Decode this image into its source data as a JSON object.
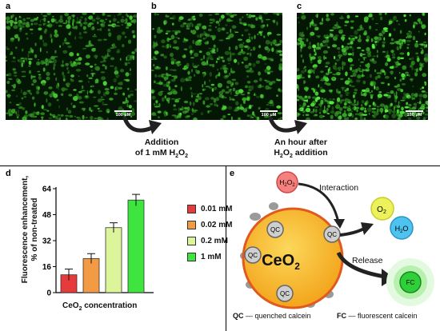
{
  "panels": {
    "a": "a",
    "b": "b",
    "c": "c",
    "d": "d",
    "e": "e"
  },
  "scale_bar": "100 μM",
  "captions": {
    "addition_line1": "Addition",
    "addition_line2": "of 1 mM H",
    "addition_sub": "2",
    "addition_tail": "O",
    "addition_sub2": "2",
    "hour_line1": "An hour after",
    "hour_h": "H",
    "hour_sub1": "2",
    "hour_o": "O",
    "hour_sub2": "2",
    "hour_tail": " addition"
  },
  "colors": {
    "bar_red": "#e63b3b",
    "bar_orange": "#f39a45",
    "bar_lightgreen": "#ddf59a",
    "bar_green": "#3ee53e",
    "ceo2": "#f7b52a",
    "ceo2_border": "#e05a20",
    "h2o2": "#f07070",
    "o2": "#eef25a",
    "h2o": "#4fc3f0",
    "fc": "#2fcf3a"
  },
  "chart_data": {
    "type": "bar",
    "xlabel_main": "CeO",
    "xlabel_sub": "2",
    "xlabel_tail": " concentration",
    "ylabel_line1": "Fluorescence enhancement,",
    "ylabel_line2": "% of non-treated",
    "ylim": [
      0,
      64
    ],
    "yticks": [
      "0",
      "16",
      "32",
      "48",
      "64"
    ],
    "categories": [
      "0.01 mM",
      "0.02 mM",
      "0.2 mM",
      "1 mM"
    ],
    "values": [
      11,
      21,
      40,
      57
    ],
    "errors": [
      3.5,
      3,
      3,
      3.5
    ],
    "legend": [
      "0.01 mM",
      "0.02 mM",
      "0.2 mM",
      "1 mM"
    ]
  },
  "diagram": {
    "h2o2_h": "H",
    "h2o2_s1": "2",
    "h2o2_o": "O",
    "h2o2_s2": "2",
    "interaction": "Interaction",
    "release": "Release",
    "ceo2_main": "CeO",
    "ceo2_sub": "2",
    "qc": "QC",
    "o2_main": "O",
    "o2_sub": "2",
    "h2o_h": "H",
    "h2o_sub": "2",
    "h2o_o": "O",
    "fc": "FC",
    "legend_qc": "QC",
    "legend_qc_text": " — quenched calcein",
    "legend_fc": "FC",
    "legend_fc_text": " — fluorescent calcein"
  }
}
